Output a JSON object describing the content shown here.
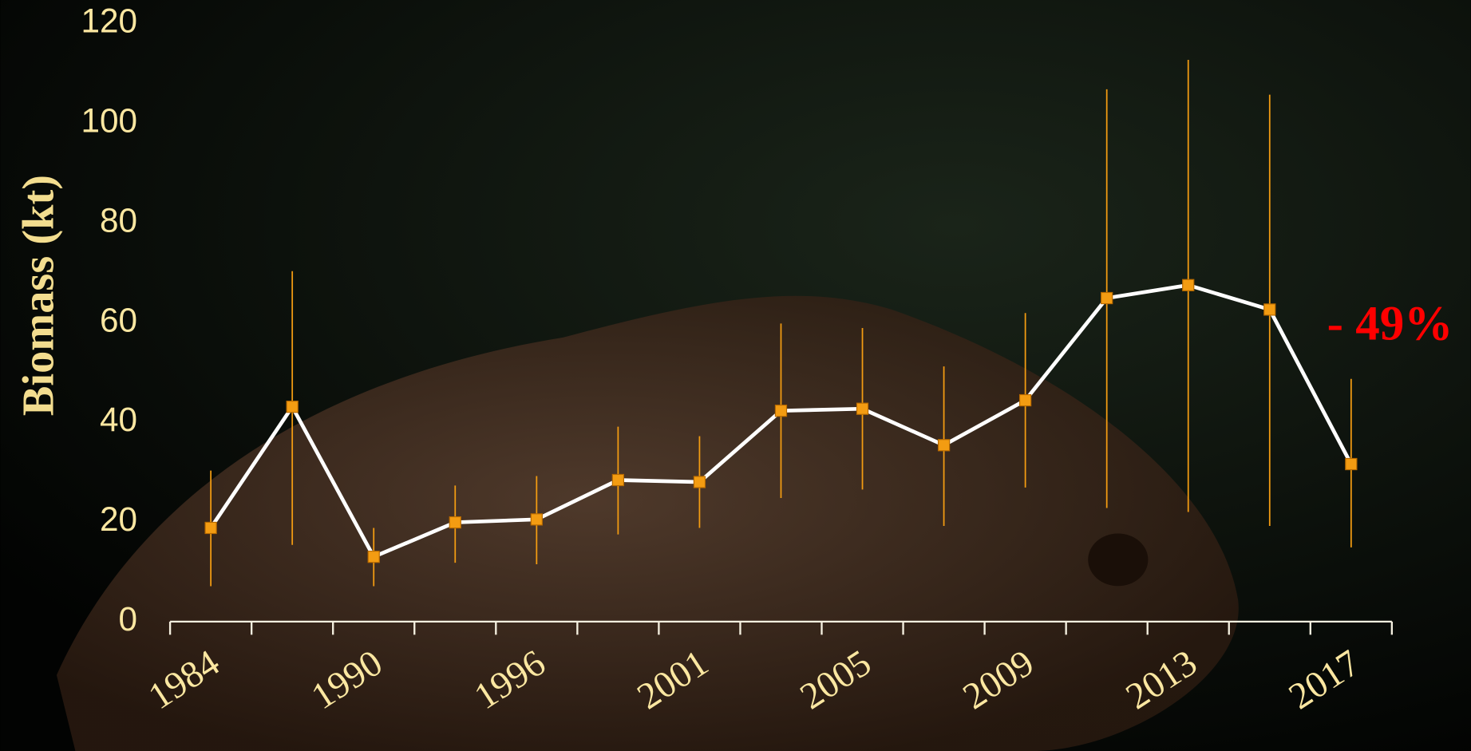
{
  "chart_data": {
    "type": "line",
    "y_label": "Biomass (kt)",
    "annotation": "- 49%",
    "categories": [
      "1984",
      null,
      "1990",
      null,
      "1996",
      null,
      "2001",
      null,
      "2005",
      null,
      "2009",
      null,
      "2013",
      null,
      "2017"
    ],
    "values": [
      18.8,
      43.1,
      13.0,
      19.9,
      20.5,
      28.4,
      28.0,
      42.3,
      42.7,
      35.4,
      44.4,
      64.9,
      67.5,
      62.6,
      31.6
    ],
    "upper": [
      30.3,
      70.3,
      18.8,
      27.3,
      29.2,
      39.1,
      37.2,
      59.8,
      58.9,
      51.2,
      61.9,
      106.8,
      112.7,
      105.7,
      48.7
    ],
    "lower": [
      7.1,
      15.4,
      7.1,
      11.8,
      11.5,
      17.5,
      18.8,
      24.8,
      26.5,
      19.2,
      26.9,
      22.8,
      22.0,
      19.2,
      14.9
    ],
    "color": "#ffffff",
    "marker_color": "#f39c12",
    "error_color": "#f39c12",
    "ylim": [
      0,
      120
    ],
    "yticks": [
      0,
      20,
      40,
      60,
      80,
      100,
      120
    ],
    "grid": false
  }
}
